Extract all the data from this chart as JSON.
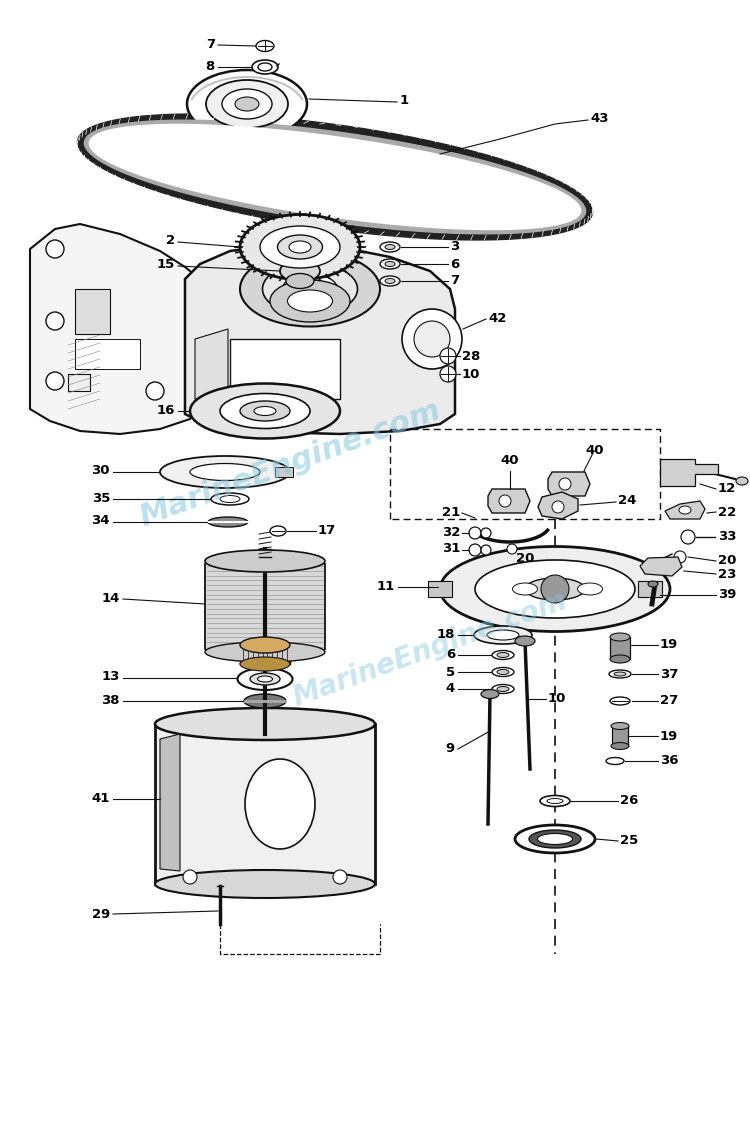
{
  "bg_color": "#ffffff",
  "lc": "#111111",
  "wm_color": "#85c8e0",
  "fig_w": 7.5,
  "fig_h": 11.29,
  "dpi": 100,
  "xlim": [
    0,
    750
  ],
  "ylim": [
    0,
    1129
  ]
}
